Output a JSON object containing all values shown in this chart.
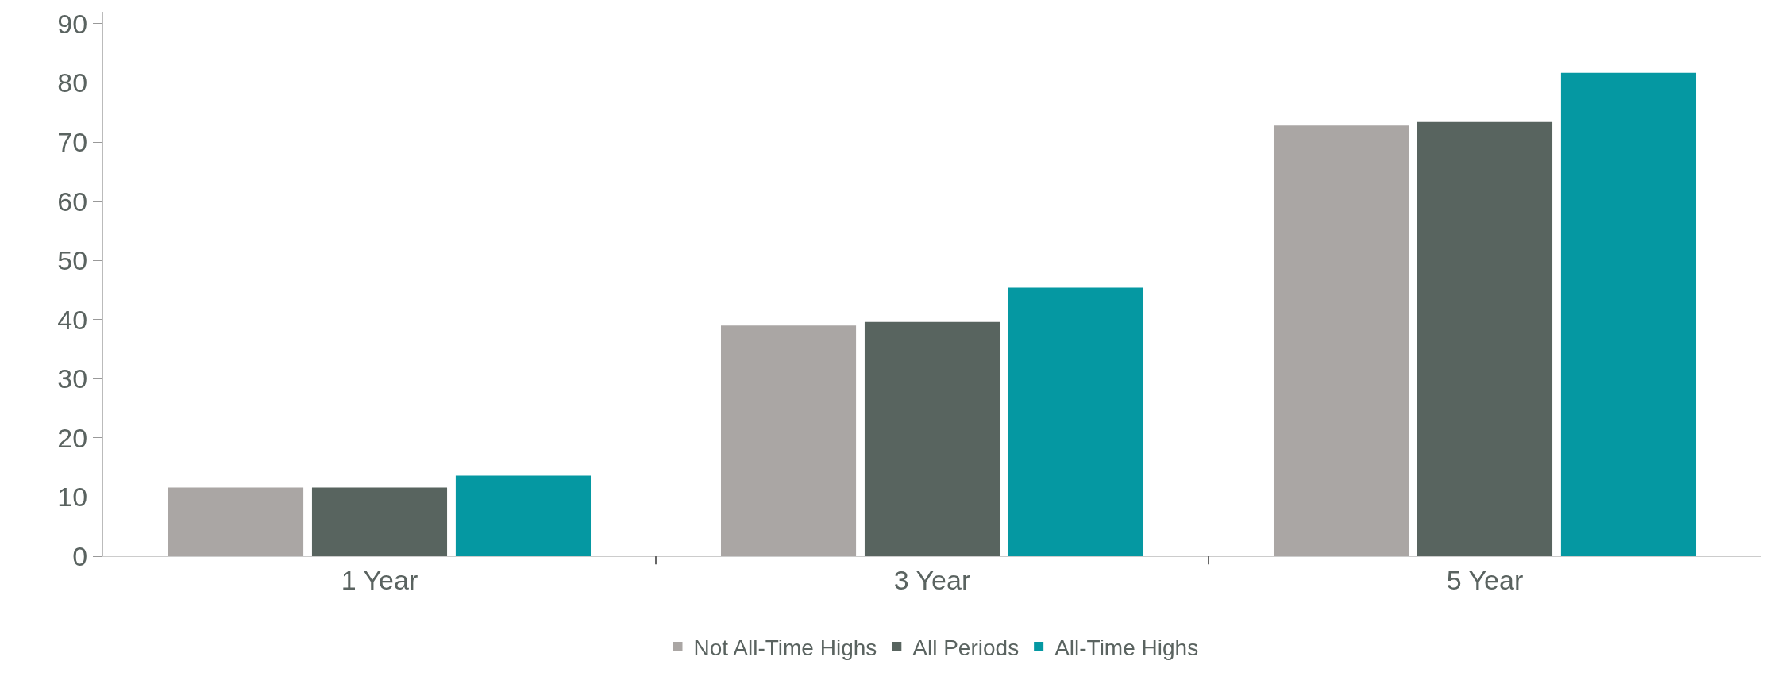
{
  "chart_data": {
    "type": "bar",
    "categories": [
      "1 Year",
      "3 Year",
      "5 Year"
    ],
    "series": [
      {
        "name": "Not All-Time Highs",
        "color": "#aaa6a4",
        "values": [
          11.6,
          39.0,
          72.8
        ]
      },
      {
        "name": "All Periods",
        "color": "#58645f",
        "values": [
          11.6,
          39.6,
          73.4
        ]
      },
      {
        "name": "All-Time Highs",
        "color": "#0598a2",
        "values": [
          13.6,
          45.4,
          81.7
        ]
      }
    ],
    "ylim": [
      0,
      92
    ],
    "yticks": [
      0,
      10,
      20,
      30,
      40,
      50,
      60,
      70,
      80,
      90
    ],
    "grid": false,
    "legend": "bottom"
  }
}
